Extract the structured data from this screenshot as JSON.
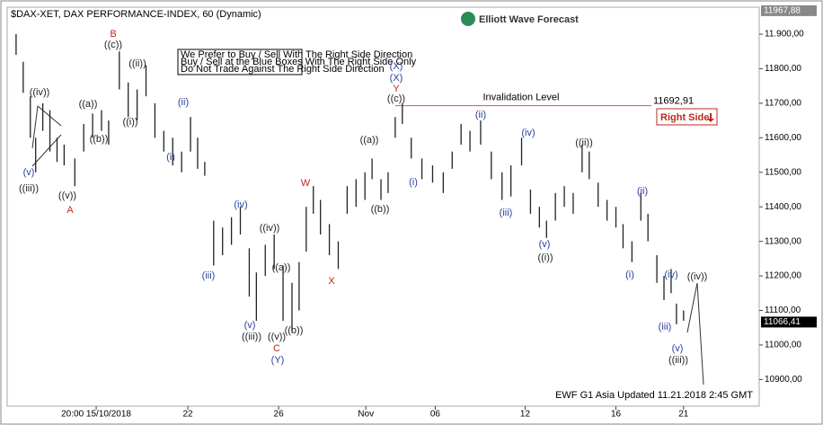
{
  "chart_data": {
    "type": "range-bar",
    "title": "$DAX-XET, DAX PERFORMANCE-INDEX, 60 (Dynamic)",
    "brand": "Elliott Wave Forecast",
    "notice": [
      "We Prefer to Buy / Sell With The Right Side Direction",
      "Buy / Sell at the Blue Boxes With The Right Side Only",
      "Do Not Trade Against The Right Side Direction"
    ],
    "side_button": "Right Side",
    "footer": "EWF G1 Asia Updated 11.21.2018 2:45 GMT",
    "color": "#222222",
    "x": [
      10,
      18,
      26,
      32,
      40,
      48,
      56,
      64,
      76,
      86,
      96,
      106,
      114,
      126,
      136,
      146,
      156,
      166,
      176,
      186,
      196,
      206,
      214,
      222,
      232,
      242,
      252,
      262,
      272,
      280,
      290,
      300,
      310,
      320,
      328,
      336,
      344,
      352,
      362,
      372,
      382,
      392,
      402,
      410,
      420,
      428,
      436,
      444,
      454,
      466,
      478,
      490,
      500,
      510,
      520,
      532,
      544,
      556,
      566,
      578,
      588,
      598,
      606,
      616,
      626,
      636,
      646,
      654,
      664,
      674,
      684,
      692,
      702,
      712,
      720,
      730,
      738,
      746,
      752,
      760
    ],
    "series": [
      {
        "name": "high",
        "values": [
          11900,
          11820,
          11720,
          11600,
          11700,
          11680,
          11600,
          11580,
          11540,
          11640,
          11670,
          11680,
          11650,
          11850,
          11760,
          11740,
          11810,
          11700,
          11620,
          11600,
          11560,
          11660,
          11600,
          11530,
          11360,
          11340,
          11370,
          11400,
          11280,
          11210,
          11290,
          11320,
          11230,
          11180,
          11240,
          11400,
          11460,
          11420,
          11350,
          11300,
          11460,
          11480,
          11500,
          11540,
          11480,
          11500,
          11660,
          11700,
          11600,
          11540,
          11520,
          11500,
          11560,
          11640,
          11620,
          11650,
          11560,
          11500,
          11520,
          11600,
          11450,
          11400,
          11360,
          11440,
          11460,
          11440,
          11580,
          11560,
          11470,
          11420,
          11400,
          11350,
          11300,
          11440,
          11380,
          11260,
          11200,
          11220,
          11120,
          11100
        ]
      },
      {
        "name": "low",
        "values": [
          11840,
          11730,
          11600,
          11500,
          11620,
          11560,
          11530,
          11520,
          11460,
          11560,
          11600,
          11620,
          11580,
          11740,
          11660,
          11650,
          11720,
          11600,
          11560,
          11520,
          11500,
          11560,
          11510,
          11490,
          11230,
          11260,
          11290,
          11320,
          11140,
          11070,
          11200,
          11220,
          11070,
          11040,
          11100,
          11270,
          11380,
          11320,
          11260,
          11220,
          11380,
          11400,
          11420,
          11480,
          11420,
          11440,
          11600,
          11640,
          11540,
          11480,
          11470,
          11440,
          11510,
          11580,
          11560,
          11580,
          11480,
          11420,
          11430,
          11520,
          11380,
          11340,
          11310,
          11360,
          11400,
          11380,
          11500,
          11480,
          11400,
          11360,
          11340,
          11280,
          11240,
          11360,
          11300,
          11180,
          11130,
          11150,
          11060,
          11070
        ]
      }
    ],
    "xlim": [
      0,
      845
    ],
    "xticks": [
      {
        "value": 100,
        "label": "20:00 15/10/2018"
      },
      {
        "value": 203,
        "label": "22"
      },
      {
        "value": 305,
        "label": "26"
      },
      {
        "value": 403,
        "label": "Nov"
      },
      {
        "value": 481,
        "label": "06"
      },
      {
        "value": 582,
        "label": "12"
      },
      {
        "value": 684,
        "label": "16"
      },
      {
        "value": 760,
        "label": "21"
      }
    ],
    "ylim": [
      10823,
      11978
    ],
    "yticks": [
      {
        "value": 10900,
        "label": "10900,00"
      },
      {
        "value": 11000,
        "label": "11000,00"
      },
      {
        "value": 11100,
        "label": "11100,00"
      },
      {
        "value": 11200,
        "label": "11200,00"
      },
      {
        "value": 11300,
        "label": "11300,00"
      },
      {
        "value": 11400,
        "label": "11400,00"
      },
      {
        "value": 11500,
        "label": "11500,00"
      },
      {
        "value": 11600,
        "label": "11600,00"
      },
      {
        "value": 11700,
        "label": "11700,00"
      },
      {
        "value": 11800,
        "label": "11800,00"
      },
      {
        "value": 11900,
        "label": "11.900,00"
      }
    ],
    "price_markers": [
      {
        "value": 11967.88,
        "label": "11967,88"
      },
      {
        "value": 11066.41,
        "label": "11066,41"
      }
    ],
    "invalidation": {
      "text": "Invalidation Level",
      "value": 11692.91,
      "label": "11692,91",
      "color": "#e05050"
    },
    "annotations": [
      {
        "text": "((iii))",
        "color": "#222"
      },
      {
        "text": "(v)",
        "color": "#2a3f9c"
      },
      {
        "text": "((iv))",
        "color": "#222"
      },
      {
        "text": "((v))",
        "color": "#222"
      },
      {
        "text": "A",
        "color": "#c0281e"
      },
      {
        "text": "((a))",
        "color": "#222"
      },
      {
        "text": "((b))",
        "color": "#222"
      },
      {
        "text": "B",
        "color": "#c0281e"
      },
      {
        "text": "((c))",
        "color": "#222"
      },
      {
        "text": "((ii))",
        "color": "#222"
      },
      {
        "text": "((i))",
        "color": "#222"
      },
      {
        "text": "(ii)",
        "color": "#2a3f9c"
      },
      {
        "text": "(i)",
        "color": "#2a3f9c"
      },
      {
        "text": "(iii)",
        "color": "#2a3f9c"
      },
      {
        "text": "(iv)",
        "color": "#2a3f9c"
      },
      {
        "text": "((iv))",
        "color": "#222"
      },
      {
        "text": "(v)",
        "color": "#2a3f9c"
      },
      {
        "text": "((iii))",
        "color": "#222"
      },
      {
        "text": "((a))",
        "color": "#222"
      },
      {
        "text": "((v))",
        "color": "#222"
      },
      {
        "text": "((b))",
        "color": "#222"
      },
      {
        "text": "C",
        "color": "#c0281e"
      },
      {
        "text": "(Y)",
        "color": "#2a3f9c"
      },
      {
        "text": "W",
        "color": "#c0281e"
      },
      {
        "text": "X",
        "color": "#c0281e"
      },
      {
        "text": "(X)",
        "color": "#2a3f9c"
      },
      {
        "text": "(X)",
        "color": "#2a3f9c"
      },
      {
        "text": "Y",
        "color": "#c0281e"
      },
      {
        "text": "((c))",
        "color": "#222"
      },
      {
        "text": "((a))",
        "color": "#222"
      },
      {
        "text": "((b))",
        "color": "#222"
      },
      {
        "text": "(i)",
        "color": "#2a3f9c"
      },
      {
        "text": "(ii)",
        "color": "#2a3f9c"
      },
      {
        "text": "(iii)",
        "color": "#2a3f9c"
      },
      {
        "text": "(iv)",
        "color": "#2a3f9c"
      },
      {
        "text": "(v)",
        "color": "#2a3f9c"
      },
      {
        "text": "((i))",
        "color": "#222"
      },
      {
        "text": "((ii))",
        "color": "#222"
      },
      {
        "text": "(i)",
        "color": "#2a3f9c"
      },
      {
        "text": "(ii)",
        "color": "#2a3f9c"
      },
      {
        "text": "(iii)",
        "color": "#2a3f9c"
      },
      {
        "text": "(iv)",
        "color": "#2a3f9c"
      },
      {
        "text": "(v)",
        "color": "#2a3f9c"
      },
      {
        "text": "((iii))",
        "color": "#222"
      },
      {
        "text": "((iv))",
        "color": "#222"
      }
    ]
  }
}
